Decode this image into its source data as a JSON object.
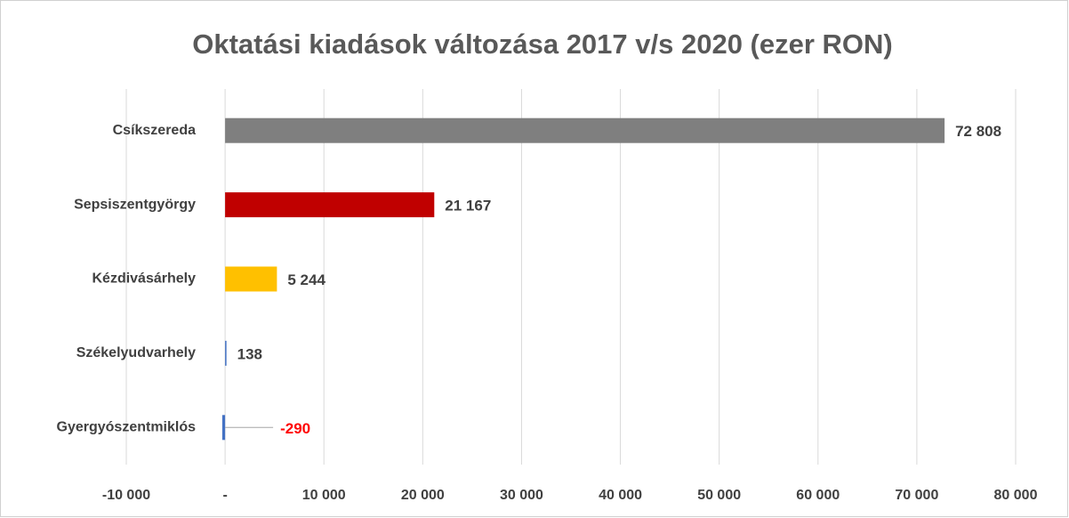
{
  "chart_data": {
    "type": "bar",
    "orientation": "horizontal",
    "title": "Oktatási kiadások változása 2017 v/s 2020 (ezer RON)",
    "categories": [
      "Csíkszereda",
      "Sepsiszentgyörgy",
      "Kézdivásárhely",
      "Székelyudvarhely",
      "Gyergyószentmiklós"
    ],
    "values": [
      72808,
      21167,
      5244,
      138,
      -290
    ],
    "value_labels": [
      "72 808",
      "21 167",
      "5 244",
      "138",
      "-290"
    ],
    "colors": [
      "#7f7f7f",
      "#c00000",
      "#ffc000",
      "#4472c4",
      "#4472c4"
    ],
    "value_label_colors": [
      "#404040",
      "#404040",
      "#404040",
      "#404040",
      "#ff0000"
    ],
    "xlim": [
      -10000,
      80000
    ],
    "xticks": [
      {
        "value": -10000,
        "label": "-10 000"
      },
      {
        "value": 0,
        "label": "-"
      },
      {
        "value": 10000,
        "label": "10 000"
      },
      {
        "value": 20000,
        "label": "20 000"
      },
      {
        "value": 30000,
        "label": "30 000"
      },
      {
        "value": 40000,
        "label": "40 000"
      },
      {
        "value": 50000,
        "label": "50 000"
      },
      {
        "value": 60000,
        "label": "60 000"
      },
      {
        "value": 70000,
        "label": "70 000"
      },
      {
        "value": 80000,
        "label": "80 000"
      }
    ],
    "grid": true
  }
}
